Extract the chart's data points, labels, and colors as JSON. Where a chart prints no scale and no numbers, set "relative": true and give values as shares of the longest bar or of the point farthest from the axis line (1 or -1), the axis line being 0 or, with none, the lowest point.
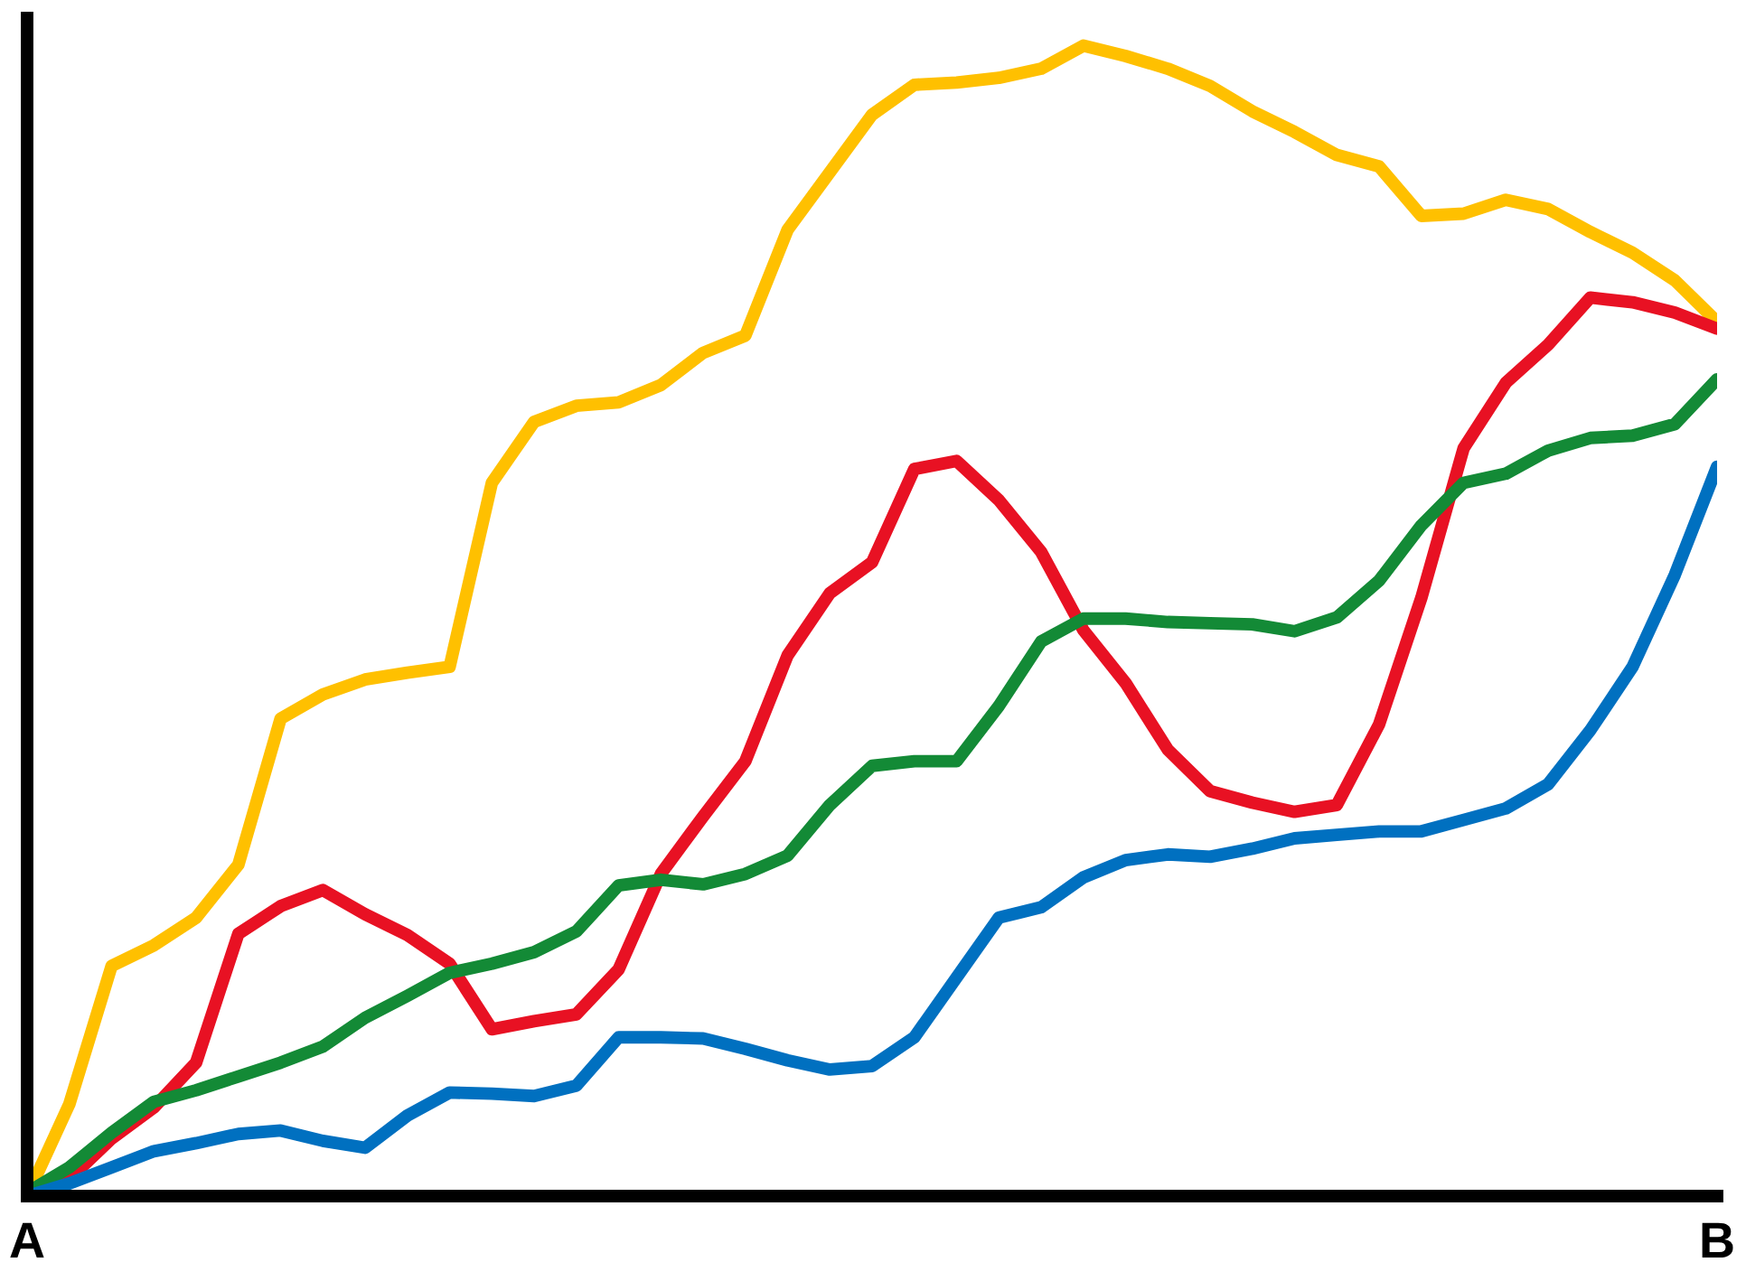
{
  "chart_data": {
    "type": "line",
    "relative": true,
    "grid": false,
    "marker": "none",
    "line_style": "solid",
    "categories": [
      "A",
      null,
      null,
      null,
      null,
      null,
      null,
      null,
      null,
      null,
      null,
      null,
      null,
      null,
      null,
      null,
      null,
      null,
      null,
      null,
      null,
      null,
      null,
      null,
      null,
      null,
      null,
      null,
      null,
      null,
      null,
      null,
      null,
      null,
      null,
      null,
      null,
      null,
      null,
      null,
      "B"
    ],
    "series": [
      {
        "color": "#ffc000",
        "values": [
          0,
          0.08,
          0.2,
          0.218,
          0.242,
          0.288,
          0.415,
          0.436,
          0.449,
          0.455,
          0.46,
          0.62,
          0.673,
          0.687,
          0.69,
          0.705,
          0.733,
          0.748,
          0.84,
          0.89,
          0.94,
          0.966,
          0.968,
          0.972,
          0.98,
          1,
          0.991,
          0.98,
          0.965,
          0.943,
          0.925,
          0.905,
          0.895,
          0.852,
          0.854,
          0.866,
          0.858,
          0.838,
          0.82,
          0.796,
          0.76
        ]
      },
      {
        "color": "#e81123",
        "values": [
          0,
          0.015,
          0.05,
          0.077,
          0.116,
          0.228,
          0.252,
          0.266,
          0.245,
          0.227,
          0.202,
          0.145,
          0.152,
          0.158,
          0.197,
          0.28,
          0.33,
          0.378,
          0.47,
          0.524,
          0.551,
          0.632,
          0.639,
          0.605,
          0.56,
          0.492,
          0.446,
          0.388,
          0.352,
          0.342,
          0.334,
          0.34,
          0.41,
          0.52,
          0.65,
          0.707,
          0.74,
          0.781,
          0.777,
          0.768,
          0.754
        ]
      },
      {
        "color": "#138a36",
        "values": [
          0.003,
          0.025,
          0.055,
          0.082,
          0.092,
          0.104,
          0.116,
          0.13,
          0.155,
          0.174,
          0.194,
          0.202,
          0.212,
          0.23,
          0.27,
          0.275,
          0.271,
          0.28,
          0.296,
          0.34,
          0.374,
          0.378,
          0.378,
          0.426,
          0.482,
          0.502,
          0.502,
          0.499,
          0.498,
          0.497,
          0.491,
          0.503,
          0.535,
          0.583,
          0.62,
          0.628,
          0.648,
          0.659,
          0.661,
          0.671,
          0.71
        ]
      },
      {
        "color": "#0070c0",
        "values": [
          0,
          0.011,
          0.025,
          0.039,
          0.046,
          0.054,
          0.057,
          0.048,
          0.042,
          0.07,
          0.09,
          0.089,
          0.087,
          0.096,
          0.138,
          0.138,
          0.137,
          0.128,
          0.118,
          0.11,
          0.113,
          0.138,
          0.19,
          0.242,
          0.251,
          0.277,
          0.292,
          0.297,
          0.295,
          0.302,
          0.311,
          0.314,
          0.317,
          0.317,
          0.327,
          0.337,
          0.358,
          0.405,
          0.46,
          0.54,
          0.634
        ]
      }
    ]
  }
}
